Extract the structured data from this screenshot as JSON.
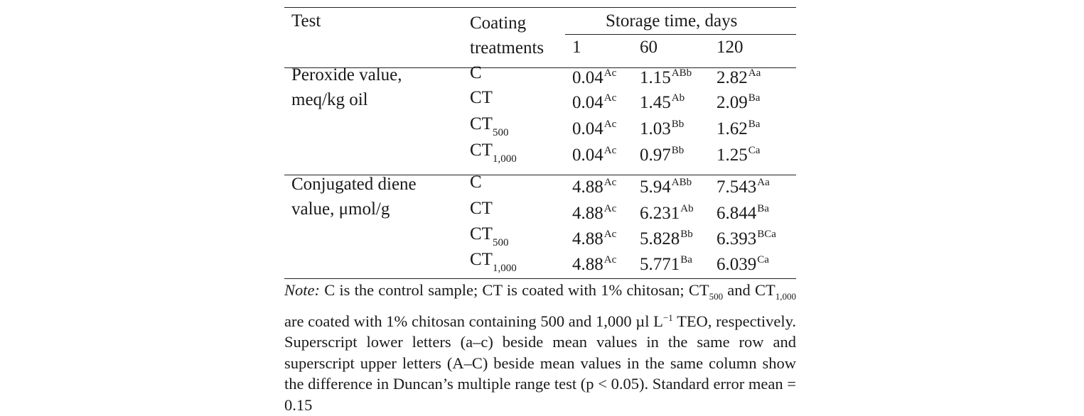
{
  "header": {
    "test": "Test",
    "coating": "Coating treatments",
    "storage": "Storage time, days",
    "days": [
      "1",
      "60",
      "120"
    ]
  },
  "groups": [
    {
      "test": "Peroxide value, meq/kg oil",
      "rows": [
        {
          "treat": "C",
          "sub": "",
          "cells": [
            [
              "0.04",
              "Ac"
            ],
            [
              "1.15",
              "ABb"
            ],
            [
              "2.82",
              "Aa"
            ]
          ]
        },
        {
          "treat": "CT",
          "sub": "",
          "cells": [
            [
              "0.04",
              "Ac"
            ],
            [
              "1.45",
              "Ab"
            ],
            [
              "2.09",
              "Ba"
            ]
          ]
        },
        {
          "treat": "CT",
          "sub": "500",
          "cells": [
            [
              "0.04",
              "Ac"
            ],
            [
              "1.03",
              "Bb"
            ],
            [
              "1.62",
              "Ba"
            ]
          ]
        },
        {
          "treat": "CT",
          "sub": "1,000",
          "cells": [
            [
              "0.04",
              "Ac"
            ],
            [
              "0.97",
              "Bb"
            ],
            [
              "1.25",
              "Ca"
            ]
          ]
        }
      ]
    },
    {
      "test": "Conjugated diene value, μmol/g",
      "rows": [
        {
          "treat": "C",
          "sub": "",
          "cells": [
            [
              "4.88",
              "Ac"
            ],
            [
              "5.94",
              "ABb"
            ],
            [
              "7.543",
              "Aa"
            ]
          ]
        },
        {
          "treat": "CT",
          "sub": "",
          "cells": [
            [
              "4.88",
              "Ac"
            ],
            [
              "6.231",
              "Ab"
            ],
            [
              "6.844",
              "Ba"
            ]
          ]
        },
        {
          "treat": "CT",
          "sub": "500",
          "cells": [
            [
              "4.88",
              "Ac"
            ],
            [
              "5.828",
              "Bb"
            ],
            [
              "6.393",
              "BCa"
            ]
          ]
        },
        {
          "treat": "CT",
          "sub": "1,000",
          "cells": [
            [
              "4.88",
              "Ac"
            ],
            [
              "5.771",
              "Ba"
            ],
            [
              "6.039",
              "Ca"
            ]
          ]
        }
      ]
    }
  ],
  "note": {
    "label": "Note:",
    "p1": " C is the control sample; CT is coated with 1% chitosan; CT",
    "s1": "500",
    "p2": " and CT",
    "s2": "1,000",
    "p3": " are coated with 1% chitosan containing 500 and 1,000 µl L",
    "s3": "−1",
    "p4": " TEO, respectively. Superscript lower letters (a–c) beside mean values in the same row and superscript upper letters (A–C) beside mean values in the same column show the difference in Duncan’s multiple range test (p < 0.05). Standard error mean = 0.15"
  }
}
